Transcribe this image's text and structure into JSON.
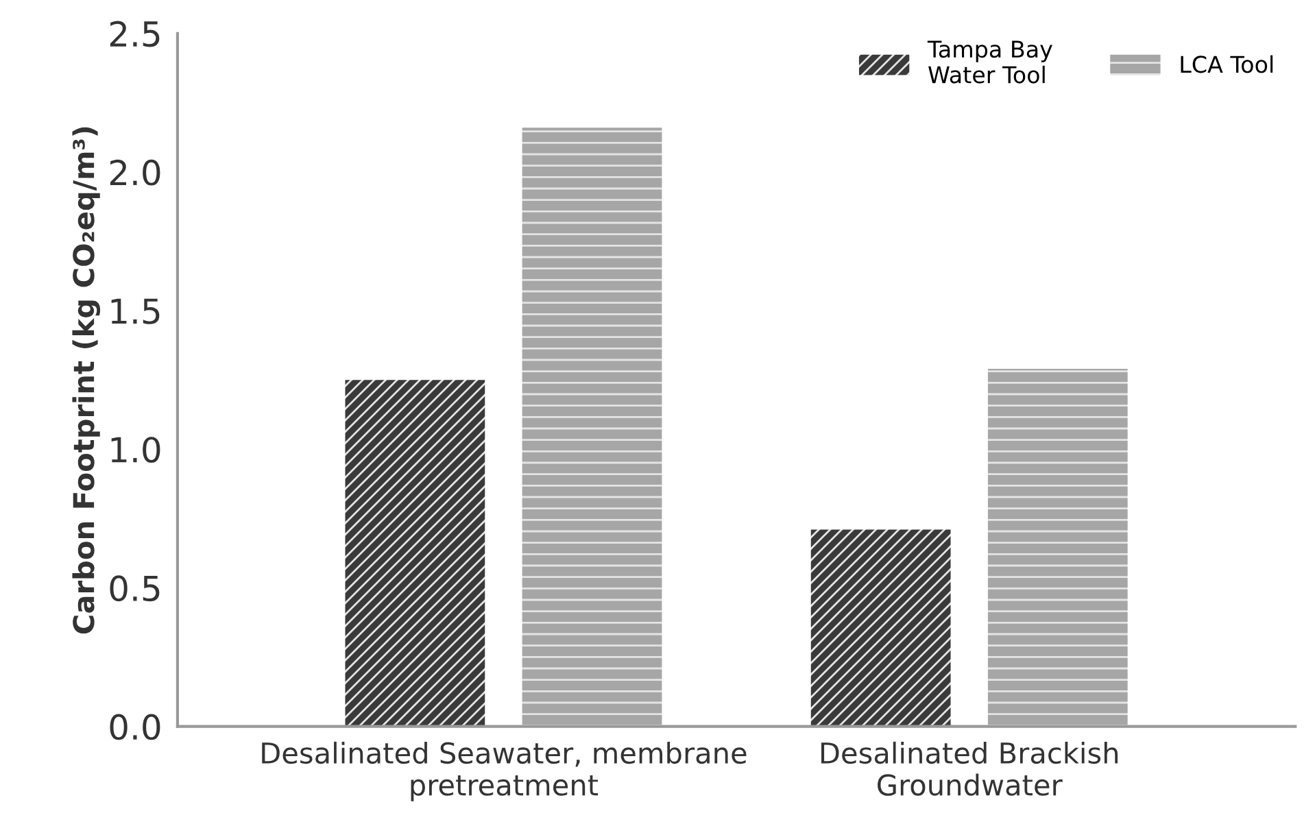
{
  "chart_data": {
    "type": "bar",
    "ylabel": "Carbon Footprint (kg CO₂eq/m³)",
    "categories": [
      "Desalinated Seawater, membrane\npretreatment",
      "Desalinated Brackish\nGroundwater"
    ],
    "series": [
      {
        "name": "Tampa Bay\nWater Tool",
        "color": "#3a3a3a",
        "values": [
          1.25,
          0.71
        ]
      },
      {
        "name": "LCA Tool",
        "color": "#a6a6a6",
        "values": [
          2.16,
          1.29
        ]
      }
    ],
    "ylim": [
      0,
      2.5
    ],
    "yticks": [
      {
        "value": 0,
        "label": "0.0"
      },
      {
        "value": 0.5,
        "label": "0.5"
      },
      {
        "value": 1,
        "label": "1.0"
      },
      {
        "value": 1.5,
        "label": "1.5"
      },
      {
        "value": 2,
        "label": "2.0"
      },
      {
        "value": 2.5,
        "label": "2.5"
      }
    ],
    "grid": false,
    "legend": "top right"
  }
}
